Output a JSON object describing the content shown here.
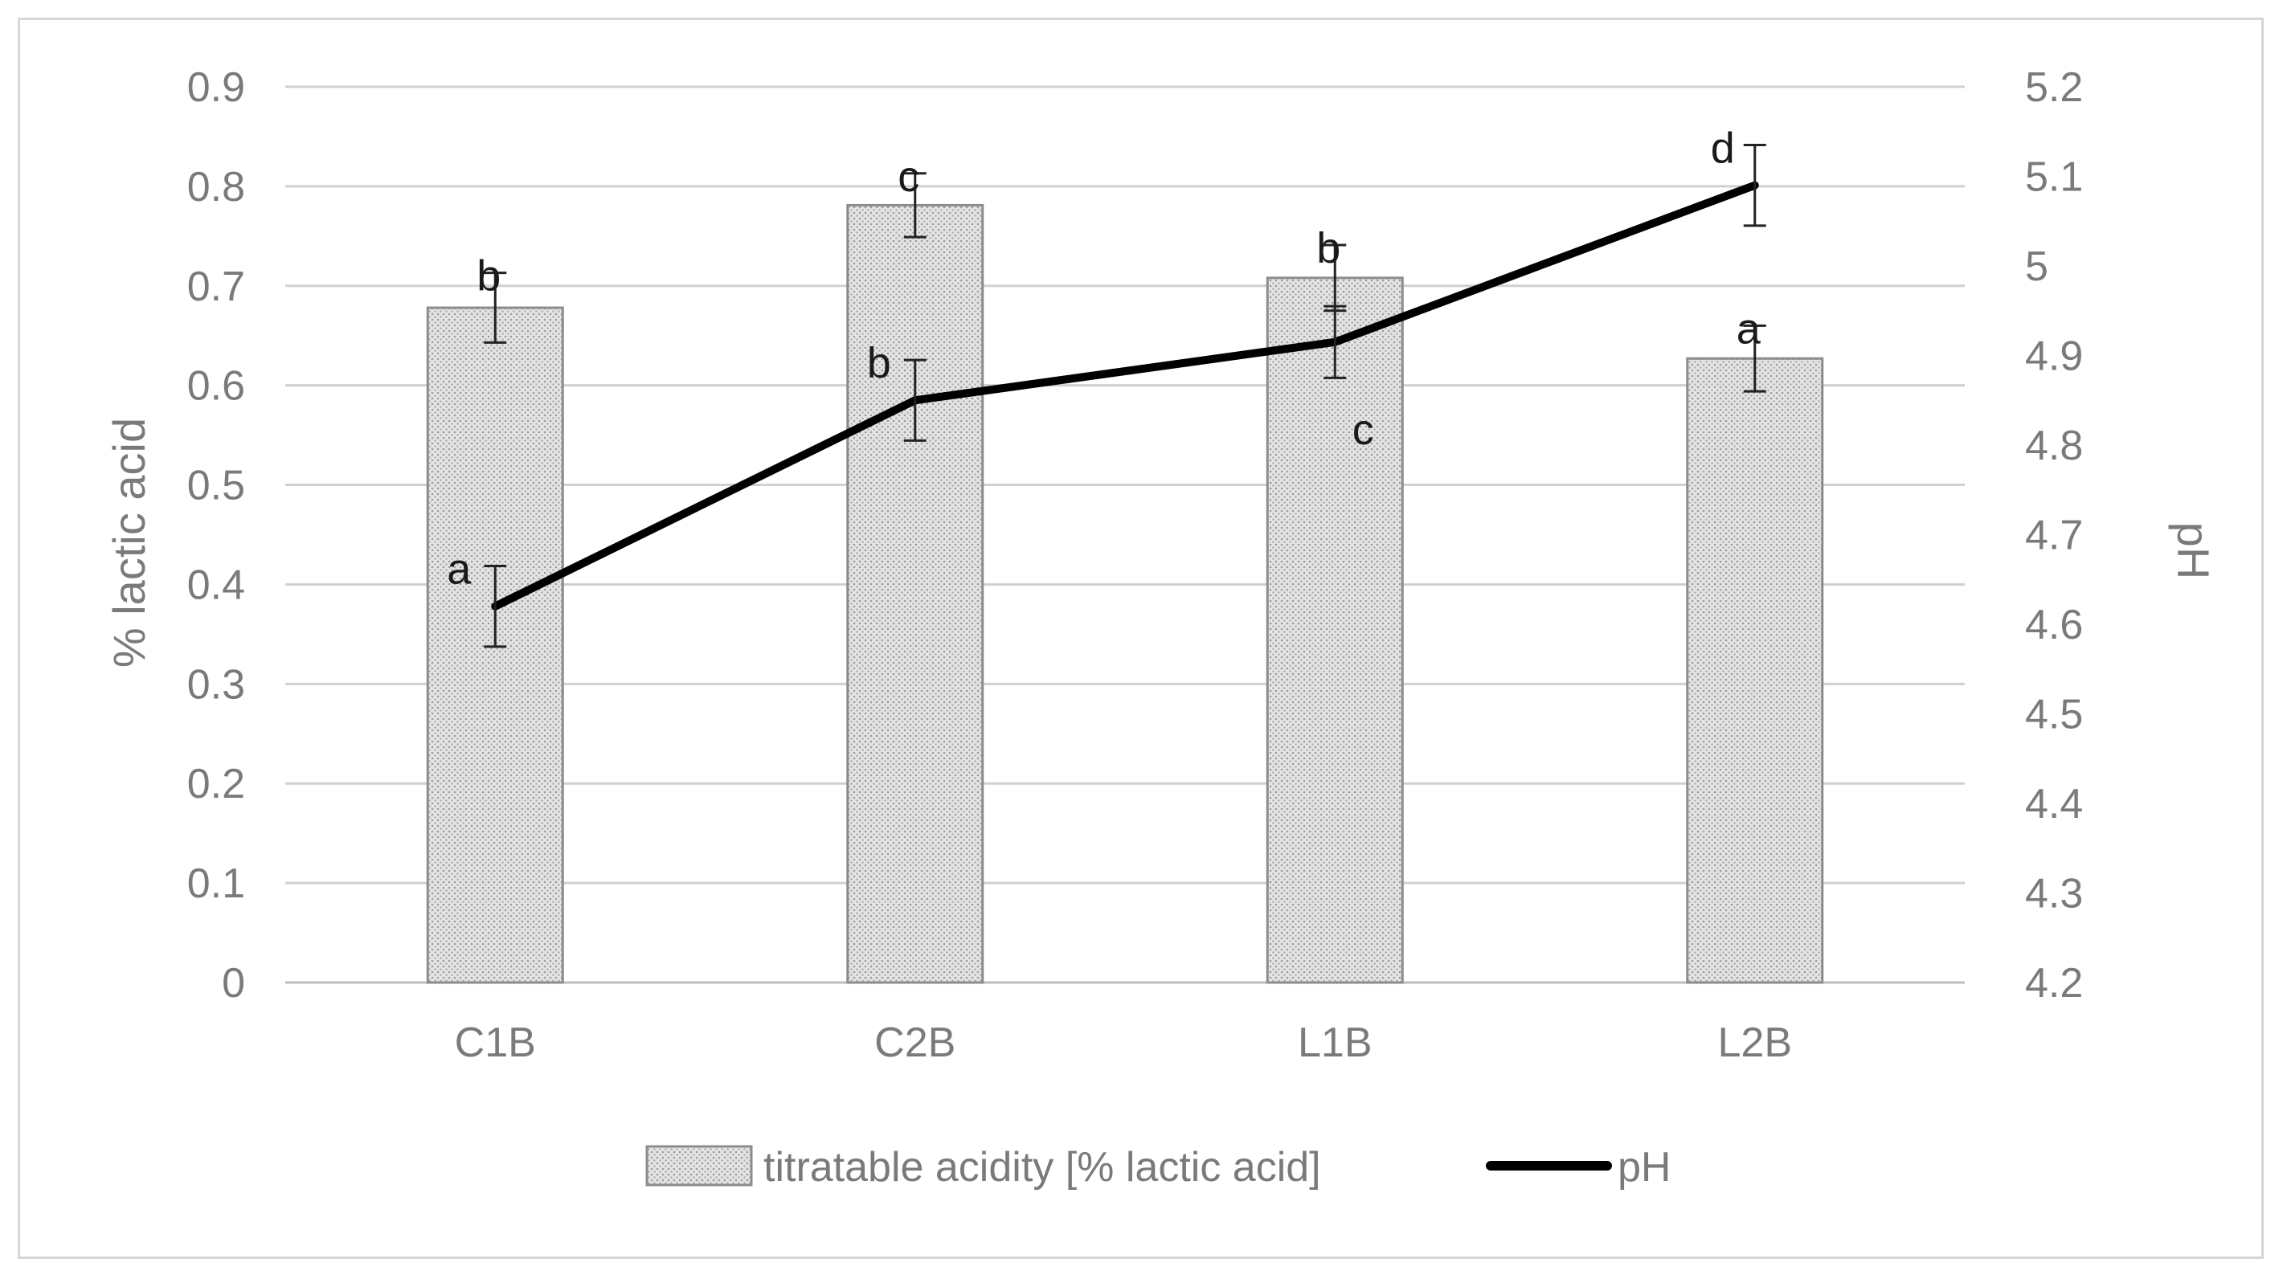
{
  "chart_data": {
    "type": "bar",
    "categories": [
      "C1B",
      "C2B",
      "L1B",
      "L2B"
    ],
    "series": [
      {
        "name": "titratable acidity [% lactic acid]",
        "type": "bar",
        "axis": "left",
        "values": [
          0.678,
          0.781,
          0.708,
          0.627
        ],
        "errors": [
          0.035,
          0.032,
          0.033,
          0.033
        ],
        "labels": [
          "b",
          "c",
          "b",
          "a"
        ]
      },
      {
        "name": "pH",
        "type": "line",
        "axis": "right",
        "values": [
          4.62,
          4.85,
          4.915,
          5.09
        ],
        "errors": [
          0.045,
          0.045,
          0.04,
          0.045
        ],
        "labels": [
          "a",
          "b",
          "c",
          "d"
        ]
      }
    ],
    "ylabel": "% lactic acid",
    "y2label": "pH",
    "ylim": [
      0,
      0.9
    ],
    "y2lim": [
      4.2,
      5.2
    ],
    "yticks": [
      "0",
      "0.1",
      "0.2",
      "0.3",
      "0.4",
      "0.5",
      "0.6",
      "0.7",
      "0.8",
      "0.9"
    ],
    "y2ticks": [
      "4.2",
      "4.3",
      "4.4",
      "4.5",
      "4.6",
      "4.7",
      "4.8",
      "4.9",
      "5",
      "5.1",
      "5.2"
    ],
    "grid": true,
    "legend_position": "bottom",
    "colors": {
      "bar_fill": "#d9d9d9",
      "bar_edge": "#8c8c8c",
      "line": "#000000",
      "grid": "#d0d0d0",
      "text": "#7a7a7a"
    }
  }
}
